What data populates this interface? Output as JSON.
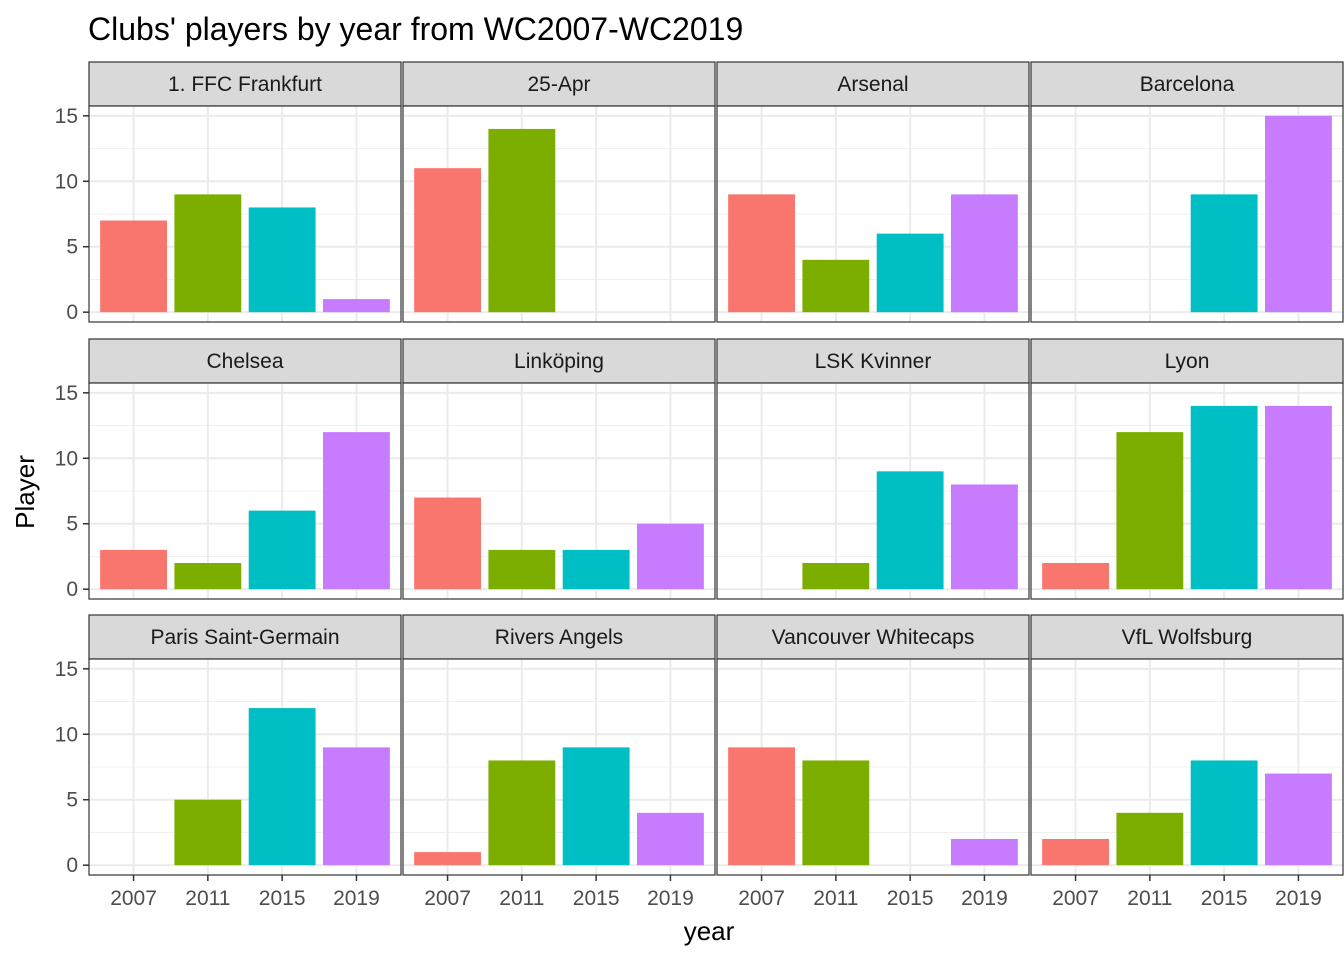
{
  "chart_data": {
    "type": "bar",
    "title": "Clubs' players by year from WC2007-WC2019",
    "xlabel": "year",
    "ylabel": "Player",
    "categories": [
      "2007",
      "2011",
      "2015",
      "2019"
    ],
    "ylim": [
      0,
      15
    ],
    "y_ticks": [
      "0",
      "5",
      "10",
      "15"
    ],
    "grid": true,
    "legend": "none",
    "colors": {
      "2007": "#F8766D",
      "2011": "#7CAE00",
      "2015": "#00BFC4",
      "2019": "#C77CFF"
    },
    "panels": [
      {
        "name": "1. FFC Frankfurt",
        "values": [
          7,
          9,
          8,
          1
        ]
      },
      {
        "name": "25-Apr",
        "values": [
          11,
          14,
          null,
          null
        ]
      },
      {
        "name": "Arsenal",
        "values": [
          9,
          4,
          6,
          9
        ]
      },
      {
        "name": "Barcelona",
        "values": [
          null,
          null,
          9,
          15
        ]
      },
      {
        "name": "Chelsea",
        "values": [
          3,
          2,
          6,
          12
        ]
      },
      {
        "name": "Linköping",
        "values": [
          7,
          3,
          3,
          5
        ]
      },
      {
        "name": "LSK Kvinner",
        "values": [
          null,
          2,
          9,
          8
        ]
      },
      {
        "name": "Lyon",
        "values": [
          2,
          12,
          14,
          14
        ]
      },
      {
        "name": "Paris Saint-Germain",
        "values": [
          null,
          5,
          12,
          9
        ]
      },
      {
        "name": "Rivers Angels",
        "values": [
          1,
          8,
          9,
          4
        ]
      },
      {
        "name": "Vancouver Whitecaps",
        "values": [
          9,
          8,
          null,
          2
        ]
      },
      {
        "name": "VfL Wolfsburg",
        "values": [
          2,
          4,
          8,
          7
        ]
      }
    ]
  }
}
